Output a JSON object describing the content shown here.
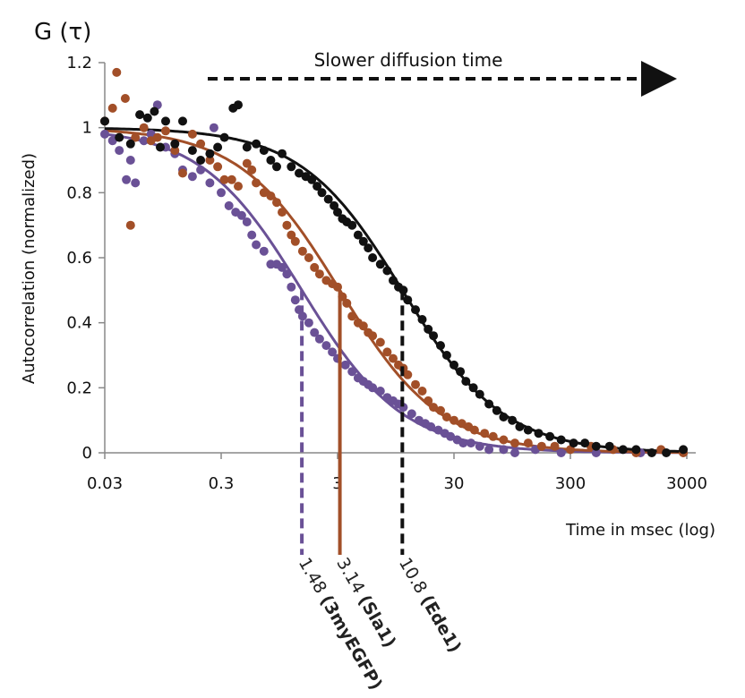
{
  "chart_data": {
    "type": "scatter",
    "title": "G (τ)",
    "xlabel": "Time in msec (log)",
    "ylabel": "Autocorrelation (normalized)",
    "x_scale": "log",
    "xlim": [
      0.03,
      3000
    ],
    "ylim": [
      0,
      1.2
    ],
    "x_ticks": [
      "0.03",
      "0.3",
      "3",
      "30",
      "300",
      "3000"
    ],
    "x_tick_values": [
      0.03,
      0.3,
      3,
      30,
      300,
      3000
    ],
    "y_ticks": [
      "0",
      "0.2",
      "0.4",
      "0.6",
      "0.8",
      "1",
      "1.2"
    ],
    "y_tick_values": [
      0,
      0.2,
      0.4,
      0.6,
      0.8,
      1,
      1.2
    ],
    "grid": false,
    "legend": "none",
    "annotation": "Slower diffusion time",
    "series": [
      {
        "color": "#6a5196",
        "tau_ms": 1.48,
        "tau_value": "1.48",
        "tau_name": "(3myEGFP)",
        "tau_line_style": "dashed",
        "points": [
          [
            0.03,
            0.98
          ],
          [
            0.035,
            0.96
          ],
          [
            0.04,
            0.93
          ],
          [
            0.046,
            0.84
          ],
          [
            0.05,
            0.9
          ],
          [
            0.055,
            0.83
          ],
          [
            0.065,
            0.96
          ],
          [
            0.075,
            0.98
          ],
          [
            0.085,
            1.07
          ],
          [
            0.1,
            0.94
          ],
          [
            0.12,
            0.92
          ],
          [
            0.14,
            0.87
          ],
          [
            0.17,
            0.85
          ],
          [
            0.2,
            0.87
          ],
          [
            0.24,
            0.83
          ],
          [
            0.26,
            1.0
          ],
          [
            0.3,
            0.8
          ],
          [
            0.35,
            0.76
          ],
          [
            0.4,
            0.74
          ],
          [
            0.45,
            0.73
          ],
          [
            0.5,
            0.71
          ],
          [
            0.55,
            0.67
          ],
          [
            0.6,
            0.64
          ],
          [
            0.7,
            0.62
          ],
          [
            0.8,
            0.58
          ],
          [
            0.9,
            0.58
          ],
          [
            1.0,
            0.57
          ],
          [
            1.1,
            0.55
          ],
          [
            1.2,
            0.51
          ],
          [
            1.3,
            0.47
          ],
          [
            1.4,
            0.44
          ],
          [
            1.5,
            0.42
          ],
          [
            1.7,
            0.4
          ],
          [
            1.9,
            0.37
          ],
          [
            2.1,
            0.35
          ],
          [
            2.4,
            0.33
          ],
          [
            2.7,
            0.31
          ],
          [
            3.0,
            0.29
          ],
          [
            3.5,
            0.27
          ],
          [
            4.0,
            0.25
          ],
          [
            4.5,
            0.23
          ],
          [
            5.0,
            0.22
          ],
          [
            5.5,
            0.21
          ],
          [
            6.0,
            0.2
          ],
          [
            7.0,
            0.19
          ],
          [
            8.0,
            0.17
          ],
          [
            9.0,
            0.16
          ],
          [
            10,
            0.15
          ],
          [
            11,
            0.14
          ],
          [
            13,
            0.12
          ],
          [
            15,
            0.1
          ],
          [
            17,
            0.09
          ],
          [
            19,
            0.08
          ],
          [
            22,
            0.07
          ],
          [
            25,
            0.06
          ],
          [
            28,
            0.05
          ],
          [
            32,
            0.04
          ],
          [
            36,
            0.03
          ],
          [
            42,
            0.03
          ],
          [
            50,
            0.02
          ],
          [
            60,
            0.01
          ],
          [
            80,
            0.01
          ],
          [
            100,
            0.0
          ],
          [
            150,
            0.01
          ],
          [
            250,
            0.0
          ],
          [
            500,
            0.0
          ],
          [
            1200,
            0.0
          ]
        ]
      },
      {
        "color": "#a24f28",
        "tau_ms": 3.14,
        "tau_value": "3.14",
        "tau_name": "(Sla1)",
        "tau_line_style": "solid",
        "points": [
          [
            0.03,
            1.02
          ],
          [
            0.035,
            1.06
          ],
          [
            0.038,
            1.17
          ],
          [
            0.045,
            1.09
          ],
          [
            0.05,
            0.7
          ],
          [
            0.055,
            0.97
          ],
          [
            0.065,
            1.0
          ],
          [
            0.075,
            0.96
          ],
          [
            0.085,
            0.97
          ],
          [
            0.1,
            0.99
          ],
          [
            0.12,
            0.93
          ],
          [
            0.14,
            0.86
          ],
          [
            0.17,
            0.98
          ],
          [
            0.2,
            0.95
          ],
          [
            0.24,
            0.9
          ],
          [
            0.28,
            0.88
          ],
          [
            0.32,
            0.84
          ],
          [
            0.37,
            0.84
          ],
          [
            0.42,
            0.82
          ],
          [
            0.5,
            0.89
          ],
          [
            0.55,
            0.87
          ],
          [
            0.6,
            0.83
          ],
          [
            0.7,
            0.8
          ],
          [
            0.8,
            0.79
          ],
          [
            0.9,
            0.77
          ],
          [
            1.0,
            0.74
          ],
          [
            1.1,
            0.7
          ],
          [
            1.2,
            0.67
          ],
          [
            1.3,
            0.65
          ],
          [
            1.5,
            0.62
          ],
          [
            1.7,
            0.6
          ],
          [
            1.9,
            0.57
          ],
          [
            2.1,
            0.55
          ],
          [
            2.4,
            0.53
          ],
          [
            2.7,
            0.52
          ],
          [
            3.0,
            0.51
          ],
          [
            3.3,
            0.48
          ],
          [
            3.6,
            0.46
          ],
          [
            4.0,
            0.42
          ],
          [
            4.5,
            0.4
          ],
          [
            5.0,
            0.39
          ],
          [
            5.5,
            0.37
          ],
          [
            6.0,
            0.36
          ],
          [
            7.0,
            0.34
          ],
          [
            8.0,
            0.31
          ],
          [
            9.0,
            0.29
          ],
          [
            10,
            0.27
          ],
          [
            11,
            0.26
          ],
          [
            12,
            0.24
          ],
          [
            14,
            0.21
          ],
          [
            16,
            0.19
          ],
          [
            18,
            0.16
          ],
          [
            20,
            0.14
          ],
          [
            23,
            0.13
          ],
          [
            26,
            0.11
          ],
          [
            30,
            0.1
          ],
          [
            35,
            0.09
          ],
          [
            40,
            0.08
          ],
          [
            45,
            0.07
          ],
          [
            55,
            0.06
          ],
          [
            65,
            0.05
          ],
          [
            80,
            0.04
          ],
          [
            100,
            0.03
          ],
          [
            130,
            0.03
          ],
          [
            170,
            0.02
          ],
          [
            220,
            0.02
          ],
          [
            300,
            0.01
          ],
          [
            450,
            0.02
          ],
          [
            700,
            0.01
          ],
          [
            1100,
            0.0
          ],
          [
            1800,
            0.01
          ],
          [
            2800,
            0.0
          ]
        ]
      },
      {
        "color": "#111111",
        "tau_ms": 10.8,
        "tau_value": "10.8",
        "tau_name": "(Ede1)",
        "tau_line_style": "dashed",
        "points": [
          [
            0.03,
            1.02
          ],
          [
            0.04,
            0.97
          ],
          [
            0.05,
            0.95
          ],
          [
            0.06,
            1.04
          ],
          [
            0.07,
            1.03
          ],
          [
            0.08,
            1.05
          ],
          [
            0.09,
            0.94
          ],
          [
            0.1,
            1.02
          ],
          [
            0.12,
            0.95
          ],
          [
            0.14,
            1.02
          ],
          [
            0.17,
            0.93
          ],
          [
            0.2,
            0.9
          ],
          [
            0.24,
            0.92
          ],
          [
            0.28,
            0.94
          ],
          [
            0.32,
            0.97
          ],
          [
            0.38,
            1.06
          ],
          [
            0.42,
            1.07
          ],
          [
            0.5,
            0.94
          ],
          [
            0.6,
            0.95
          ],
          [
            0.7,
            0.93
          ],
          [
            0.8,
            0.9
          ],
          [
            0.9,
            0.88
          ],
          [
            1.0,
            0.92
          ],
          [
            1.2,
            0.88
          ],
          [
            1.4,
            0.86
          ],
          [
            1.6,
            0.85
          ],
          [
            1.8,
            0.84
          ],
          [
            2.0,
            0.82
          ],
          [
            2.2,
            0.8
          ],
          [
            2.5,
            0.78
          ],
          [
            2.8,
            0.76
          ],
          [
            3.0,
            0.74
          ],
          [
            3.3,
            0.72
          ],
          [
            3.6,
            0.71
          ],
          [
            4.0,
            0.7
          ],
          [
            4.5,
            0.67
          ],
          [
            5.0,
            0.65
          ],
          [
            5.5,
            0.63
          ],
          [
            6.0,
            0.6
          ],
          [
            7.0,
            0.58
          ],
          [
            8.0,
            0.56
          ],
          [
            9.0,
            0.53
          ],
          [
            10,
            0.51
          ],
          [
            11,
            0.5
          ],
          [
            12,
            0.47
          ],
          [
            14,
            0.44
          ],
          [
            16,
            0.41
          ],
          [
            18,
            0.38
          ],
          [
            20,
            0.36
          ],
          [
            23,
            0.33
          ],
          [
            26,
            0.3
          ],
          [
            30,
            0.27
          ],
          [
            34,
            0.25
          ],
          [
            38,
            0.22
          ],
          [
            44,
            0.2
          ],
          [
            50,
            0.18
          ],
          [
            60,
            0.15
          ],
          [
            70,
            0.13
          ],
          [
            80,
            0.11
          ],
          [
            95,
            0.1
          ],
          [
            110,
            0.08
          ],
          [
            130,
            0.07
          ],
          [
            160,
            0.06
          ],
          [
            200,
            0.05
          ],
          [
            250,
            0.04
          ],
          [
            320,
            0.03
          ],
          [
            400,
            0.03
          ],
          [
            500,
            0.02
          ],
          [
            650,
            0.02
          ],
          [
            850,
            0.01
          ],
          [
            1100,
            0.01
          ],
          [
            1500,
            0.0
          ],
          [
            2000,
            0.0
          ],
          [
            2800,
            0.01
          ]
        ]
      }
    ]
  }
}
